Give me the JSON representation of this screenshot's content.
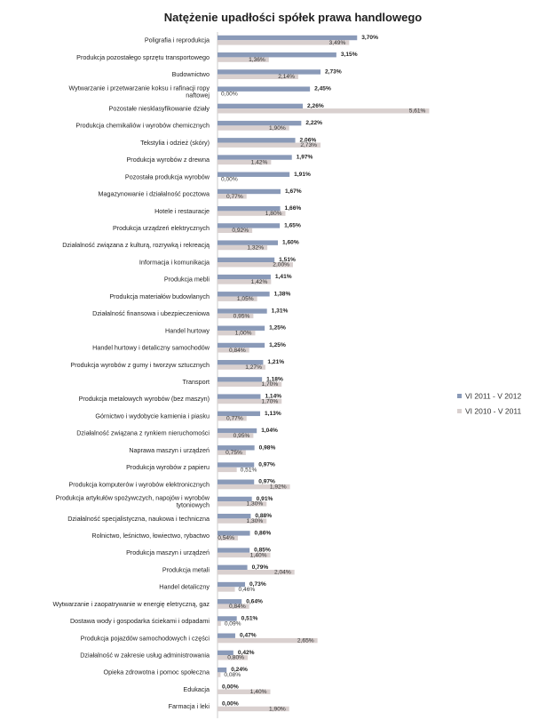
{
  "chart_data": {
    "type": "bar",
    "orientation": "horizontal",
    "title": "Natężenie upadłości spółek prawa handlowego",
    "xlabel": "",
    "ylabel": "",
    "xlim": [
      0,
      6
    ],
    "grid": false,
    "legend_position": "right",
    "categories": [
      "Poligrafia i reprodukcja",
      "Produkcja pozostałego sprzętu transportowego",
      "Budownictwo",
      "Wytwarzanie i przetwarzanie koksu i rafinacji ropy naftowej",
      "Pozostałe niesklasyfikowanie działy",
      "Produkcja chemikaliów i wyrobów chemicznych",
      "Tekstylia i odzież (skóry)",
      "Produkcja wyrobów z drewna",
      "Pozostała produkcja wyrobów",
      "Magazynowanie i działalność pocztowa",
      "Hotele i restauracje",
      "Produkcja urządzeń elektrycznych",
      "Działalność związana z kulturą, rozrywką i rekreacją",
      "Informacja i komunikacja",
      "Produkcja mebli",
      "Produkcja materiałów budowlanych",
      "Działalność finansowa i ubezpieczeniowa",
      "Handel hurtowy",
      "Handel hurtowy i detaliczny samochodów",
      "Produkcja wyrobów z gumy i tworzyw sztucznych",
      "Transport",
      "Produkcja metalowych wyrobów (bez maszyn)",
      "Górnictwo i wydobycie kamienia i piasku",
      "Działalność związana z rynkiem nieruchomości",
      "Naprawa maszyn i urządzeń",
      "Produkcja wyrobów z papieru",
      "Produkcja komputerów i wyrobów elektronicznych",
      "Produkcja artykułów spożywczych, napojów i wyrobów tytoniowych",
      "Działalność specjalistyczna, naukowa i techniczna",
      "Rolnictwo, leśnictwo, łowiectwo, rybactwo",
      "Produkcja maszyn i urządzeń",
      "Produkcja metali",
      "Handel detaliczny",
      "Wytwarzanie i zaopatrywanie w energię eletryczną, gaz",
      "Dostawa wody i gospodarka ściekami i odpadami",
      "Produkcja pojazdów samochodowych i części",
      "Działalność w zakresie usług administrowania",
      "Opieka zdrowotna i pomoc społeczna",
      "Edukacja",
      "Farmacja i leki"
    ],
    "series": [
      {
        "name": "VI 2011 - V 2012",
        "color": "#8a9ab8",
        "values": [
          3.7,
          3.15,
          2.73,
          2.45,
          2.26,
          2.22,
          2.06,
          1.97,
          1.91,
          1.67,
          1.66,
          1.65,
          1.6,
          1.51,
          1.41,
          1.38,
          1.31,
          1.25,
          1.25,
          1.21,
          1.18,
          1.14,
          1.13,
          1.04,
          0.98,
          0.97,
          0.97,
          0.91,
          0.88,
          0.86,
          0.85,
          0.79,
          0.73,
          0.64,
          0.51,
          0.47,
          0.42,
          0.24,
          0.0,
          0.0
        ],
        "labels": [
          "3,70%",
          "3,15%",
          "2,73%",
          "2,45%",
          "2,26%",
          "2,22%",
          "2,06%",
          "1,97%",
          "1,91%",
          "1,67%",
          "1,66%",
          "1,65%",
          "1,60%",
          "1,51%",
          "1,41%",
          "1,38%",
          "1,31%",
          "1,25%",
          "1,25%",
          "1,21%",
          "1,18%",
          "1,14%",
          "1,13%",
          "1,04%",
          "0,98%",
          "0,97%",
          "0,97%",
          "0,91%",
          "0,88%",
          "0,86%",
          "0,85%",
          "0,79%",
          "0,73%",
          "0,64%",
          "0,51%",
          "0,47%",
          "0,42%",
          "0,24%",
          "0,00%",
          "0,00%"
        ]
      },
      {
        "name": "VI 2010 - V 2011",
        "color": "#d9d0cf",
        "values": [
          3.49,
          1.36,
          2.14,
          0.0,
          5.61,
          1.9,
          2.73,
          1.42,
          0.0,
          0.77,
          1.8,
          0.92,
          1.32,
          2.0,
          1.42,
          1.05,
          0.95,
          1.0,
          0.84,
          1.27,
          1.7,
          1.7,
          0.77,
          0.95,
          0.75,
          0.51,
          1.92,
          1.3,
          1.3,
          0.54,
          1.4,
          2.04,
          0.46,
          0.84,
          0.09,
          2.65,
          0.8,
          0.08,
          1.4,
          1.9
        ],
        "labels": [
          "3,49%",
          "1,36%",
          "2,14%",
          "0,00%",
          "5,61%",
          "1,90%",
          "2,73%",
          "1,42%",
          "0,00%",
          "0,77%",
          "1,80%",
          "0,92%",
          "1,32%",
          "2,00%",
          "1,42%",
          "1,05%",
          "0,95%",
          "1,00%",
          "0,84%",
          "1,27%",
          "1,70%",
          "1,70%",
          "0,77%",
          "0,95%",
          "0,75%",
          "0,51%",
          "1,92%",
          "1,30%",
          "1,30%",
          "0,54%",
          "1,40%",
          "2,04%",
          "0,46%",
          "0,84%",
          "0,09%",
          "2,65%",
          "0,80%",
          "0,08%",
          "1,40%",
          "1,90%"
        ]
      }
    ]
  }
}
